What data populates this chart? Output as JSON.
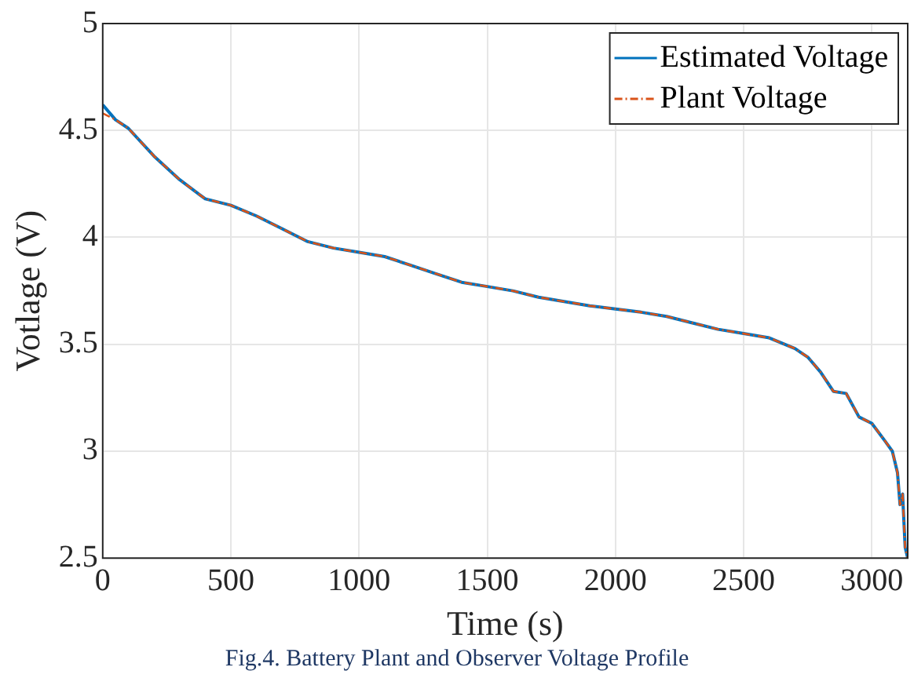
{
  "chart_data": {
    "type": "line",
    "xlabel": "Time (s)",
    "ylabel": "Votlage (V)",
    "x": [
      0,
      50,
      100,
      200,
      300,
      400,
      500,
      600,
      700,
      800,
      900,
      1000,
      1100,
      1200,
      1300,
      1400,
      1500,
      1600,
      1700,
      1800,
      1900,
      2000,
      2100,
      2200,
      2300,
      2400,
      2500,
      2600,
      2700,
      2750,
      2800,
      2850,
      2900,
      2950,
      3000,
      3050,
      3080,
      3100,
      3110,
      3120,
      3130,
      3140
    ],
    "series": [
      {
        "name": "Estimated Voltage",
        "color": "#0072bd",
        "line_style": "solid",
        "values": [
          4.62,
          4.55,
          4.51,
          4.38,
          4.27,
          4.18,
          4.15,
          4.1,
          4.04,
          3.98,
          3.95,
          3.93,
          3.91,
          3.87,
          3.83,
          3.79,
          3.77,
          3.75,
          3.72,
          3.7,
          3.68,
          3.665,
          3.65,
          3.63,
          3.6,
          3.57,
          3.55,
          3.53,
          3.48,
          3.44,
          3.37,
          3.28,
          3.27,
          3.16,
          3.13,
          3.05,
          3.0,
          2.9,
          2.75,
          2.8,
          2.55,
          2.5
        ]
      },
      {
        "name": "Plant Voltage",
        "color": "#d95319",
        "line_style": "dashed",
        "values": [
          4.58,
          4.55,
          4.51,
          4.38,
          4.27,
          4.18,
          4.15,
          4.1,
          4.04,
          3.98,
          3.95,
          3.93,
          3.91,
          3.87,
          3.83,
          3.79,
          3.77,
          3.75,
          3.72,
          3.7,
          3.68,
          3.665,
          3.65,
          3.63,
          3.6,
          3.57,
          3.55,
          3.53,
          3.48,
          3.44,
          3.37,
          3.28,
          3.27,
          3.16,
          3.13,
          3.05,
          3.0,
          2.9,
          2.75,
          2.8,
          2.55,
          2.5
        ]
      }
    ],
    "xlim": [
      0,
      3140
    ],
    "xticks": [
      0,
      500,
      1000,
      1500,
      2000,
      2500,
      3000
    ],
    "ylim": [
      2.5,
      5
    ],
    "yticks": [
      2.5,
      3,
      3.5,
      4,
      4.5,
      5
    ],
    "grid": true,
    "legend": "top right",
    "marker": "none",
    "annotations": [
      "Fig.4. Battery Plant and Observer Voltage Profile"
    ]
  }
}
